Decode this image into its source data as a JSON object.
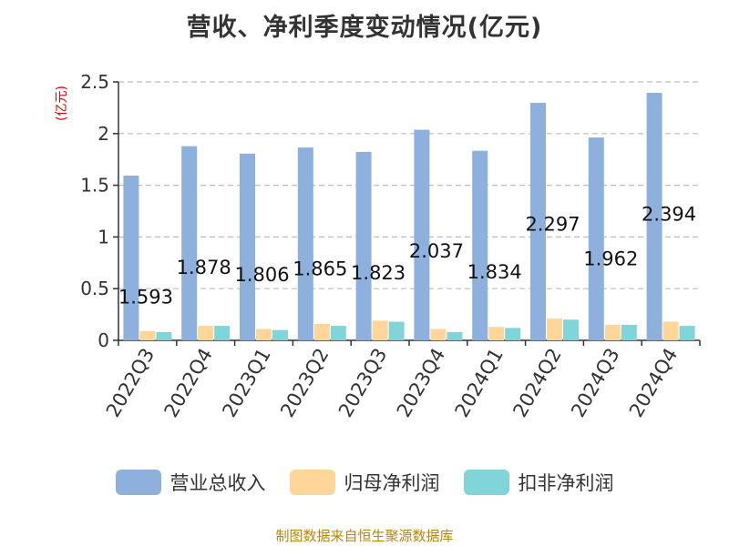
{
  "title": "营收、净利季度变动情况(亿元)",
  "unit_label": "(亿元)",
  "source": "制图数据来自恒生聚源数据库",
  "colors": {
    "revenue": "#8eb0dd",
    "net_profit": "#ffd699",
    "deducted_profit": "#81d4d7",
    "unit": "#e00000",
    "source": "#b8860b"
  },
  "chart_data": {
    "type": "bar",
    "title": "营收、净利季度变动情况(亿元)",
    "ylabel": "(亿元)",
    "xlabel": "",
    "ylim": [
      0,
      2.5
    ],
    "yticks": [
      "0",
      "0.5",
      "1",
      "1.5",
      "2",
      "2.5"
    ],
    "grid": true,
    "legend_position": "bottom",
    "categories": [
      "2022Q3",
      "2022Q4",
      "2023Q1",
      "2023Q2",
      "2023Q3",
      "2023Q4",
      "2024Q1",
      "2024Q2",
      "2024Q3",
      "2024Q4"
    ],
    "series": [
      {
        "name": "营业总收入",
        "color": "#8eb0dd",
        "values": [
          1.593,
          1.878,
          1.806,
          1.865,
          1.823,
          2.037,
          1.834,
          2.297,
          1.962,
          2.394
        ],
        "labels": [
          "1.593",
          "1.878",
          "1.806",
          "1.865",
          "1.823",
          "2.037",
          "1.834",
          "2.297",
          "1.962",
          "2.394"
        ]
      },
      {
        "name": "归母净利润",
        "color": "#ffd699",
        "values": [
          0.09,
          0.14,
          0.11,
          0.16,
          0.19,
          0.11,
          0.13,
          0.21,
          0.15,
          0.18
        ]
      },
      {
        "name": "扣非净利润",
        "color": "#81d4d7",
        "values": [
          0.08,
          0.14,
          0.1,
          0.14,
          0.18,
          0.08,
          0.12,
          0.2,
          0.15,
          0.14
        ]
      }
    ]
  }
}
